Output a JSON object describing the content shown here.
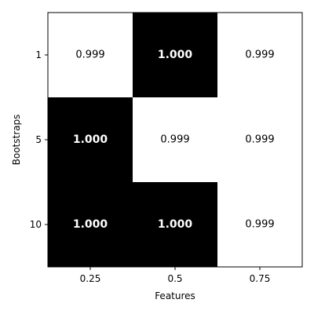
{
  "chart_data": {
    "type": "heatmap",
    "title": "",
    "xlabel": "Features",
    "ylabel": "Bootstraps",
    "x_categories": [
      "0.25",
      "0.5",
      "0.75"
    ],
    "y_categories": [
      "1",
      "5",
      "10"
    ],
    "values": [
      [
        0.999,
        1.0,
        0.999
      ],
      [
        1.0,
        0.999,
        0.999
      ],
      [
        1.0,
        1.0,
        0.999
      ]
    ],
    "value_labels": [
      [
        "0.999",
        "1.000",
        "0.999"
      ],
      [
        "1.000",
        "0.999",
        "0.999"
      ],
      [
        "1.000",
        "1.000",
        "0.999"
      ]
    ],
    "colormap": "gray_r",
    "low_color": "#ffffff",
    "high_color": "#000000",
    "low_text_color": "#000000",
    "high_text_color": "#ffffff",
    "grid": false,
    "legend": "none"
  }
}
